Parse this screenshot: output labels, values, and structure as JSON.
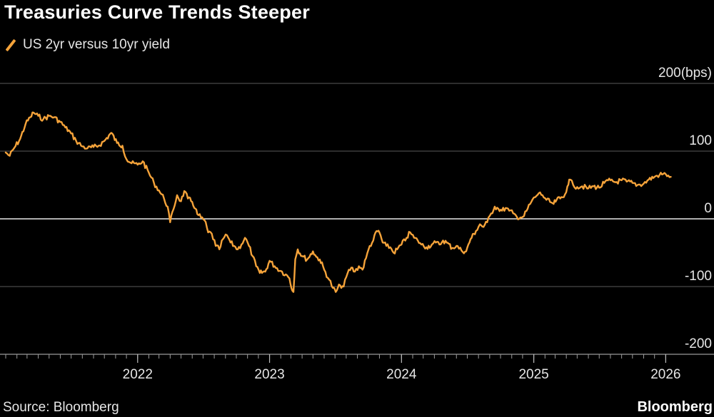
{
  "header": {
    "title": "Treasuries Curve Trends Steeper"
  },
  "legend": {
    "label": "US 2yr versus 10yr yield",
    "color": "#f5a33a"
  },
  "footer": {
    "source": "Source: Bloomberg",
    "brand": "Bloomberg"
  },
  "chart_data": {
    "type": "line",
    "title": "Treasuries Curve Trends Steeper",
    "xlabel": "",
    "ylabel": "bps",
    "ylim": [
      -200,
      200
    ],
    "yticks": [
      200,
      100,
      0,
      -100,
      -200
    ],
    "ytick_labels": [
      "200(bps)",
      "100",
      "0",
      "-100",
      "-200"
    ],
    "xlim": [
      "2021-01-01",
      "2026-01-20"
    ],
    "xticks": [
      "2022-01-01",
      "2023-01-01",
      "2024-01-01",
      "2025-01-01",
      "2026-01-01"
    ],
    "xtick_labels": [
      "2022",
      "2023",
      "2024",
      "2025",
      "2026"
    ],
    "grid": "horizontal",
    "series": [
      {
        "name": "US 2yr versus 10yr yield",
        "color": "#f5a33a",
        "points": [
          [
            "2021-01-01",
            98
          ],
          [
            "2021-01-12",
            93
          ],
          [
            "2021-01-25",
            105
          ],
          [
            "2021-02-10",
            118
          ],
          [
            "2021-02-25",
            140
          ],
          [
            "2021-03-10",
            150
          ],
          [
            "2021-03-19",
            157
          ],
          [
            "2021-04-01",
            152
          ],
          [
            "2021-04-15",
            147
          ],
          [
            "2021-05-01",
            152
          ],
          [
            "2021-05-15",
            150
          ],
          [
            "2021-06-01",
            143
          ],
          [
            "2021-06-15",
            135
          ],
          [
            "2021-07-01",
            126
          ],
          [
            "2021-07-15",
            115
          ],
          [
            "2021-08-01",
            107
          ],
          [
            "2021-08-15",
            104
          ],
          [
            "2021-09-01",
            106
          ],
          [
            "2021-09-15",
            108
          ],
          [
            "2021-10-01",
            115
          ],
          [
            "2021-10-20",
            127
          ],
          [
            "2021-11-05",
            112
          ],
          [
            "2021-11-20",
            108
          ],
          [
            "2021-12-01",
            88
          ],
          [
            "2021-12-15",
            82
          ],
          [
            "2022-01-01",
            80
          ],
          [
            "2022-01-15",
            85
          ],
          [
            "2022-02-01",
            68
          ],
          [
            "2022-02-15",
            53
          ],
          [
            "2022-03-01",
            42
          ],
          [
            "2022-03-15",
            30
          ],
          [
            "2022-03-25",
            18
          ],
          [
            "2022-04-01",
            -5
          ],
          [
            "2022-04-10",
            14
          ],
          [
            "2022-04-20",
            35
          ],
          [
            "2022-05-01",
            26
          ],
          [
            "2022-05-10",
            41
          ],
          [
            "2022-05-20",
            30
          ],
          [
            "2022-06-01",
            25
          ],
          [
            "2022-06-10",
            15
          ],
          [
            "2022-06-15",
            7
          ],
          [
            "2022-06-25",
            2
          ],
          [
            "2022-07-05",
            -2
          ],
          [
            "2022-07-15",
            -20
          ],
          [
            "2022-07-25",
            -22
          ],
          [
            "2022-08-05",
            -40
          ],
          [
            "2022-08-15",
            -45
          ],
          [
            "2022-08-25",
            -30
          ],
          [
            "2022-09-05",
            -24
          ],
          [
            "2022-09-15",
            -35
          ],
          [
            "2022-09-25",
            -40
          ],
          [
            "2022-10-05",
            -45
          ],
          [
            "2022-10-15",
            -38
          ],
          [
            "2022-10-25",
            -28
          ],
          [
            "2022-11-05",
            -40
          ],
          [
            "2022-11-15",
            -55
          ],
          [
            "2022-11-25",
            -70
          ],
          [
            "2022-12-05",
            -80
          ],
          [
            "2022-12-20",
            -78
          ],
          [
            "2023-01-01",
            -62
          ],
          [
            "2023-01-15",
            -70
          ],
          [
            "2023-02-01",
            -77
          ],
          [
            "2023-02-15",
            -82
          ],
          [
            "2023-02-25",
            -88
          ],
          [
            "2023-03-05",
            -106
          ],
          [
            "2023-03-08",
            -108
          ],
          [
            "2023-03-13",
            -60
          ],
          [
            "2023-03-20",
            -45
          ],
          [
            "2023-04-01",
            -55
          ],
          [
            "2023-04-15",
            -60
          ],
          [
            "2023-05-01",
            -48
          ],
          [
            "2023-05-10",
            -56
          ],
          [
            "2023-05-20",
            -60
          ],
          [
            "2023-06-01",
            -75
          ],
          [
            "2023-06-15",
            -90
          ],
          [
            "2023-06-25",
            -102
          ],
          [
            "2023-07-03",
            -108
          ],
          [
            "2023-07-15",
            -98
          ],
          [
            "2023-07-25",
            -100
          ],
          [
            "2023-08-05",
            -80
          ],
          [
            "2023-08-15",
            -72
          ],
          [
            "2023-08-25",
            -78
          ],
          [
            "2023-09-05",
            -70
          ],
          [
            "2023-09-15",
            -75
          ],
          [
            "2023-09-25",
            -58
          ],
          [
            "2023-10-05",
            -40
          ],
          [
            "2023-10-15",
            -32
          ],
          [
            "2023-10-24",
            -18
          ],
          [
            "2023-11-01",
            -20
          ],
          [
            "2023-11-10",
            -35
          ],
          [
            "2023-11-20",
            -40
          ],
          [
            "2023-12-01",
            -42
          ],
          [
            "2023-12-10",
            -50
          ],
          [
            "2023-12-20",
            -45
          ],
          [
            "2024-01-01",
            -38
          ],
          [
            "2024-01-15",
            -28
          ],
          [
            "2024-01-25",
            -20
          ],
          [
            "2024-02-05",
            -28
          ],
          [
            "2024-02-15",
            -32
          ],
          [
            "2024-02-25",
            -38
          ],
          [
            "2024-03-10",
            -42
          ],
          [
            "2024-03-25",
            -38
          ],
          [
            "2024-04-05",
            -35
          ],
          [
            "2024-04-15",
            -38
          ],
          [
            "2024-04-25",
            -32
          ],
          [
            "2024-05-05",
            -35
          ],
          [
            "2024-05-20",
            -43
          ],
          [
            "2024-06-01",
            -40
          ],
          [
            "2024-06-15",
            -47
          ],
          [
            "2024-06-28",
            -48
          ],
          [
            "2024-07-10",
            -30
          ],
          [
            "2024-07-25",
            -18
          ],
          [
            "2024-08-05",
            -8
          ],
          [
            "2024-08-15",
            -12
          ],
          [
            "2024-08-25",
            -5
          ],
          [
            "2024-09-05",
            8
          ],
          [
            "2024-09-15",
            18
          ],
          [
            "2024-09-25",
            15
          ],
          [
            "2024-10-05",
            12
          ],
          [
            "2024-10-15",
            16
          ],
          [
            "2024-10-25",
            12
          ],
          [
            "2024-11-05",
            8
          ],
          [
            "2024-11-15",
            3
          ],
          [
            "2024-11-25",
            2
          ],
          [
            "2024-12-05",
            4
          ],
          [
            "2024-12-15",
            15
          ],
          [
            "2024-12-25",
            25
          ],
          [
            "2025-01-05",
            32
          ],
          [
            "2025-01-15",
            38
          ],
          [
            "2025-01-25",
            35
          ],
          [
            "2025-02-05",
            28
          ],
          [
            "2025-02-15",
            25
          ],
          [
            "2025-02-25",
            22
          ],
          [
            "2025-03-05",
            28
          ],
          [
            "2025-03-15",
            30
          ],
          [
            "2025-03-25",
            32
          ],
          [
            "2025-04-04",
            48
          ],
          [
            "2025-04-09",
            58
          ],
          [
            "2025-04-20",
            50
          ],
          [
            "2025-05-01",
            47
          ],
          [
            "2025-05-15",
            48
          ],
          [
            "2025-06-01",
            45
          ],
          [
            "2025-06-15",
            48
          ],
          [
            "2025-07-01",
            46
          ],
          [
            "2025-07-15",
            53
          ],
          [
            "2025-08-01",
            57
          ],
          [
            "2025-08-15",
            54
          ],
          [
            "2025-09-01",
            57
          ],
          [
            "2025-09-15",
            55
          ],
          [
            "2025-10-01",
            53
          ],
          [
            "2025-10-15",
            50
          ],
          [
            "2025-11-01",
            52
          ],
          [
            "2025-11-15",
            58
          ],
          [
            "2025-12-01",
            62
          ],
          [
            "2025-12-15",
            65
          ],
          [
            "2026-01-01",
            66
          ],
          [
            "2026-01-08",
            64
          ],
          [
            "2026-01-15",
            62
          ]
        ]
      }
    ]
  }
}
